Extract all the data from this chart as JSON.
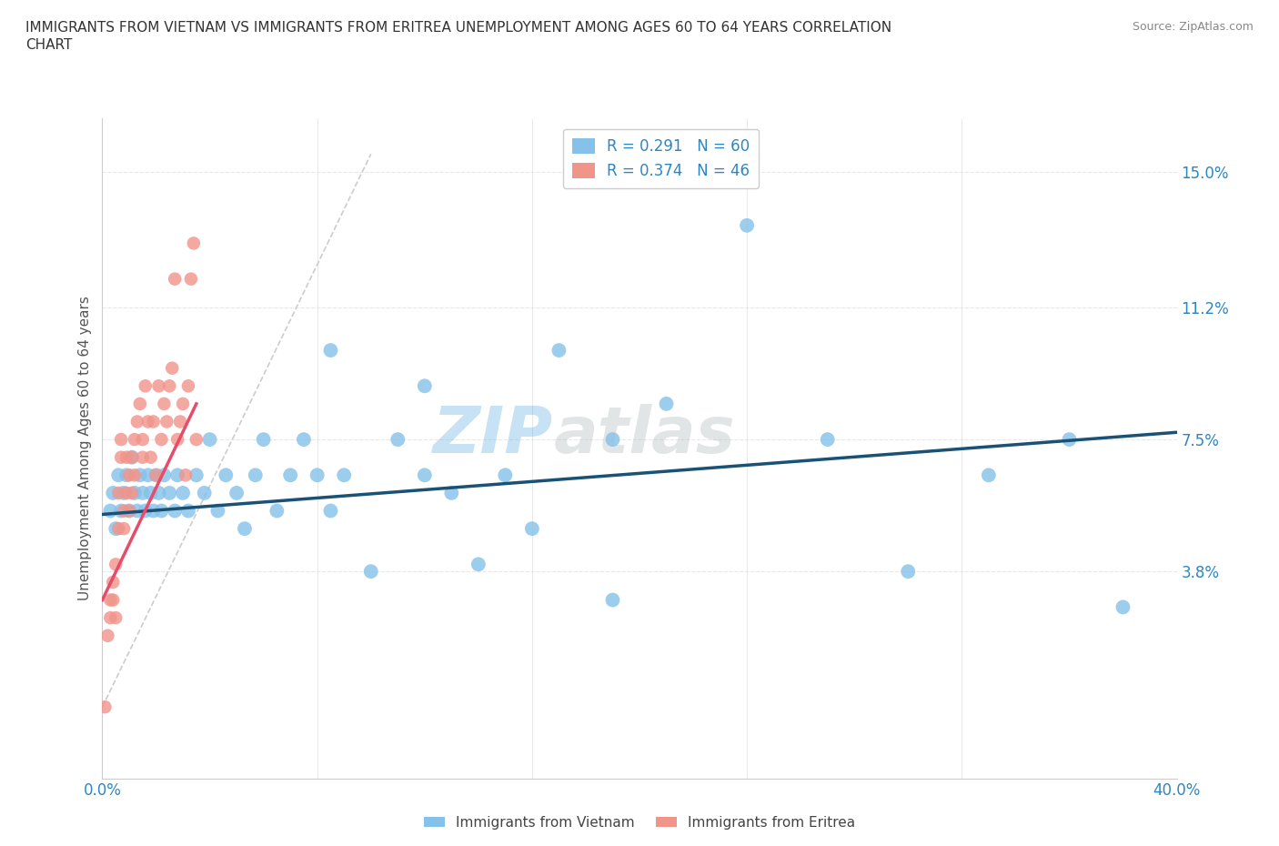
{
  "title_line1": "IMMIGRANTS FROM VIETNAM VS IMMIGRANTS FROM ERITREA UNEMPLOYMENT AMONG AGES 60 TO 64 YEARS CORRELATION",
  "title_line2": "CHART",
  "source": "Source: ZipAtlas.com",
  "ylabel": "Unemployment Among Ages 60 to 64 years",
  "ytick_labels": [
    "15.0%",
    "11.2%",
    "7.5%",
    "3.8%"
  ],
  "ytick_values": [
    0.15,
    0.112,
    0.075,
    0.038
  ],
  "xtick_left_label": "0.0%",
  "xtick_right_label": "40.0%",
  "xmin": 0.0,
  "xmax": 0.4,
  "ymin": -0.02,
  "ymax": 0.165,
  "r_vietnam": "0.291",
  "n_vietnam": "60",
  "r_eritrea": "0.374",
  "n_eritrea": "46",
  "color_vietnam": "#85c1e9",
  "color_eritrea": "#f1948a",
  "trendline_vietnam_color": "#1a5276",
  "trendline_eritrea_color": "#e74c6a",
  "diagonal_color": "#cccccc",
  "watermark": "ZIPatlas",
  "blue_text_color": "#2e86c1",
  "background_color": "#ffffff",
  "vn_x": [
    0.003,
    0.004,
    0.005,
    0.006,
    0.007,
    0.008,
    0.009,
    0.01,
    0.011,
    0.012,
    0.013,
    0.014,
    0.015,
    0.016,
    0.017,
    0.018,
    0.019,
    0.02,
    0.021,
    0.022,
    0.023,
    0.025,
    0.027,
    0.028,
    0.03,
    0.032,
    0.035,
    0.038,
    0.04,
    0.043,
    0.046,
    0.05,
    0.053,
    0.057,
    0.06,
    0.065,
    0.07,
    0.075,
    0.08,
    0.085,
    0.09,
    0.1,
    0.11,
    0.12,
    0.13,
    0.14,
    0.15,
    0.17,
    0.19,
    0.21,
    0.24,
    0.27,
    0.3,
    0.33,
    0.36,
    0.38,
    0.085,
    0.12,
    0.16,
    0.19
  ],
  "vn_y": [
    0.055,
    0.06,
    0.05,
    0.065,
    0.055,
    0.06,
    0.065,
    0.055,
    0.07,
    0.06,
    0.055,
    0.065,
    0.06,
    0.055,
    0.065,
    0.06,
    0.055,
    0.065,
    0.06,
    0.055,
    0.065,
    0.06,
    0.055,
    0.065,
    0.06,
    0.055,
    0.065,
    0.06,
    0.075,
    0.055,
    0.065,
    0.06,
    0.05,
    0.065,
    0.075,
    0.055,
    0.065,
    0.075,
    0.065,
    0.055,
    0.065,
    0.038,
    0.075,
    0.065,
    0.06,
    0.04,
    0.065,
    0.1,
    0.075,
    0.085,
    0.135,
    0.075,
    0.038,
    0.065,
    0.075,
    0.028,
    0.1,
    0.09,
    0.05,
    0.03
  ],
  "er_x": [
    0.001,
    0.002,
    0.003,
    0.003,
    0.004,
    0.004,
    0.005,
    0.005,
    0.006,
    0.006,
    0.007,
    0.007,
    0.008,
    0.008,
    0.009,
    0.009,
    0.01,
    0.01,
    0.011,
    0.011,
    0.012,
    0.012,
    0.013,
    0.014,
    0.015,
    0.015,
    0.016,
    0.017,
    0.018,
    0.019,
    0.02,
    0.021,
    0.022,
    0.023,
    0.024,
    0.025,
    0.026,
    0.027,
    0.028,
    0.029,
    0.03,
    0.031,
    0.032,
    0.033,
    0.034,
    0.035
  ],
  "er_y": [
    0.0,
    0.02,
    0.03,
    0.025,
    0.035,
    0.03,
    0.04,
    0.025,
    0.05,
    0.06,
    0.07,
    0.075,
    0.05,
    0.055,
    0.06,
    0.07,
    0.055,
    0.065,
    0.06,
    0.07,
    0.075,
    0.065,
    0.08,
    0.085,
    0.07,
    0.075,
    0.09,
    0.08,
    0.07,
    0.08,
    0.065,
    0.09,
    0.075,
    0.085,
    0.08,
    0.09,
    0.095,
    0.12,
    0.075,
    0.08,
    0.085,
    0.065,
    0.09,
    0.12,
    0.13,
    0.075
  ],
  "vn_trend_x0": 0.0,
  "vn_trend_y0": 0.054,
  "vn_trend_x1": 0.4,
  "vn_trend_y1": 0.077,
  "er_trend_x0": 0.0,
  "er_trend_y0": 0.03,
  "er_trend_x1": 0.035,
  "er_trend_y1": 0.085
}
